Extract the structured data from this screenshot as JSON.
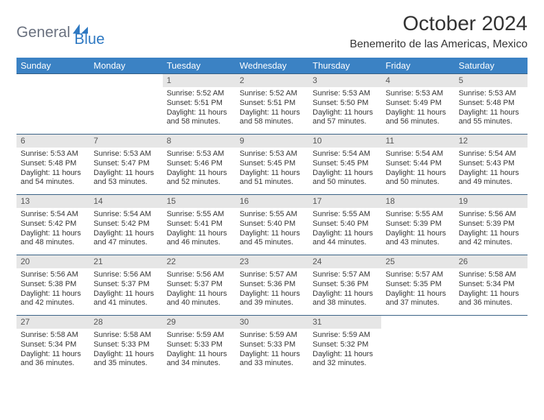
{
  "brand": {
    "part1": "General",
    "part2": "Blue"
  },
  "title": "October 2024",
  "location": "Benemerito de las Americas, Mexico",
  "colors": {
    "header_bg": "#3b82c4",
    "header_text": "#ffffff",
    "daynum_bg": "#e6e6e6",
    "row_border": "#2f5a80",
    "brand_gray": "#6b7280",
    "brand_blue": "#2f79c2"
  },
  "weekdays": [
    "Sunday",
    "Monday",
    "Tuesday",
    "Wednesday",
    "Thursday",
    "Friday",
    "Saturday"
  ],
  "weeks": [
    [
      {
        "empty": true
      },
      {
        "empty": true
      },
      {
        "num": "1",
        "sunrise": "Sunrise: 5:52 AM",
        "sunset": "Sunset: 5:51 PM",
        "daylight": "Daylight: 11 hours and 58 minutes."
      },
      {
        "num": "2",
        "sunrise": "Sunrise: 5:52 AM",
        "sunset": "Sunset: 5:51 PM",
        "daylight": "Daylight: 11 hours and 58 minutes."
      },
      {
        "num": "3",
        "sunrise": "Sunrise: 5:53 AM",
        "sunset": "Sunset: 5:50 PM",
        "daylight": "Daylight: 11 hours and 57 minutes."
      },
      {
        "num": "4",
        "sunrise": "Sunrise: 5:53 AM",
        "sunset": "Sunset: 5:49 PM",
        "daylight": "Daylight: 11 hours and 56 minutes."
      },
      {
        "num": "5",
        "sunrise": "Sunrise: 5:53 AM",
        "sunset": "Sunset: 5:48 PM",
        "daylight": "Daylight: 11 hours and 55 minutes."
      }
    ],
    [
      {
        "num": "6",
        "sunrise": "Sunrise: 5:53 AM",
        "sunset": "Sunset: 5:48 PM",
        "daylight": "Daylight: 11 hours and 54 minutes."
      },
      {
        "num": "7",
        "sunrise": "Sunrise: 5:53 AM",
        "sunset": "Sunset: 5:47 PM",
        "daylight": "Daylight: 11 hours and 53 minutes."
      },
      {
        "num": "8",
        "sunrise": "Sunrise: 5:53 AM",
        "sunset": "Sunset: 5:46 PM",
        "daylight": "Daylight: 11 hours and 52 minutes."
      },
      {
        "num": "9",
        "sunrise": "Sunrise: 5:53 AM",
        "sunset": "Sunset: 5:45 PM",
        "daylight": "Daylight: 11 hours and 51 minutes."
      },
      {
        "num": "10",
        "sunrise": "Sunrise: 5:54 AM",
        "sunset": "Sunset: 5:45 PM",
        "daylight": "Daylight: 11 hours and 50 minutes."
      },
      {
        "num": "11",
        "sunrise": "Sunrise: 5:54 AM",
        "sunset": "Sunset: 5:44 PM",
        "daylight": "Daylight: 11 hours and 50 minutes."
      },
      {
        "num": "12",
        "sunrise": "Sunrise: 5:54 AM",
        "sunset": "Sunset: 5:43 PM",
        "daylight": "Daylight: 11 hours and 49 minutes."
      }
    ],
    [
      {
        "num": "13",
        "sunrise": "Sunrise: 5:54 AM",
        "sunset": "Sunset: 5:42 PM",
        "daylight": "Daylight: 11 hours and 48 minutes."
      },
      {
        "num": "14",
        "sunrise": "Sunrise: 5:54 AM",
        "sunset": "Sunset: 5:42 PM",
        "daylight": "Daylight: 11 hours and 47 minutes."
      },
      {
        "num": "15",
        "sunrise": "Sunrise: 5:55 AM",
        "sunset": "Sunset: 5:41 PM",
        "daylight": "Daylight: 11 hours and 46 minutes."
      },
      {
        "num": "16",
        "sunrise": "Sunrise: 5:55 AM",
        "sunset": "Sunset: 5:40 PM",
        "daylight": "Daylight: 11 hours and 45 minutes."
      },
      {
        "num": "17",
        "sunrise": "Sunrise: 5:55 AM",
        "sunset": "Sunset: 5:40 PM",
        "daylight": "Daylight: 11 hours and 44 minutes."
      },
      {
        "num": "18",
        "sunrise": "Sunrise: 5:55 AM",
        "sunset": "Sunset: 5:39 PM",
        "daylight": "Daylight: 11 hours and 43 minutes."
      },
      {
        "num": "19",
        "sunrise": "Sunrise: 5:56 AM",
        "sunset": "Sunset: 5:39 PM",
        "daylight": "Daylight: 11 hours and 42 minutes."
      }
    ],
    [
      {
        "num": "20",
        "sunrise": "Sunrise: 5:56 AM",
        "sunset": "Sunset: 5:38 PM",
        "daylight": "Daylight: 11 hours and 42 minutes."
      },
      {
        "num": "21",
        "sunrise": "Sunrise: 5:56 AM",
        "sunset": "Sunset: 5:37 PM",
        "daylight": "Daylight: 11 hours and 41 minutes."
      },
      {
        "num": "22",
        "sunrise": "Sunrise: 5:56 AM",
        "sunset": "Sunset: 5:37 PM",
        "daylight": "Daylight: 11 hours and 40 minutes."
      },
      {
        "num": "23",
        "sunrise": "Sunrise: 5:57 AM",
        "sunset": "Sunset: 5:36 PM",
        "daylight": "Daylight: 11 hours and 39 minutes."
      },
      {
        "num": "24",
        "sunrise": "Sunrise: 5:57 AM",
        "sunset": "Sunset: 5:36 PM",
        "daylight": "Daylight: 11 hours and 38 minutes."
      },
      {
        "num": "25",
        "sunrise": "Sunrise: 5:57 AM",
        "sunset": "Sunset: 5:35 PM",
        "daylight": "Daylight: 11 hours and 37 minutes."
      },
      {
        "num": "26",
        "sunrise": "Sunrise: 5:58 AM",
        "sunset": "Sunset: 5:34 PM",
        "daylight": "Daylight: 11 hours and 36 minutes."
      }
    ],
    [
      {
        "num": "27",
        "sunrise": "Sunrise: 5:58 AM",
        "sunset": "Sunset: 5:34 PM",
        "daylight": "Daylight: 11 hours and 36 minutes."
      },
      {
        "num": "28",
        "sunrise": "Sunrise: 5:58 AM",
        "sunset": "Sunset: 5:33 PM",
        "daylight": "Daylight: 11 hours and 35 minutes."
      },
      {
        "num": "29",
        "sunrise": "Sunrise: 5:59 AM",
        "sunset": "Sunset: 5:33 PM",
        "daylight": "Daylight: 11 hours and 34 minutes."
      },
      {
        "num": "30",
        "sunrise": "Sunrise: 5:59 AM",
        "sunset": "Sunset: 5:33 PM",
        "daylight": "Daylight: 11 hours and 33 minutes."
      },
      {
        "num": "31",
        "sunrise": "Sunrise: 5:59 AM",
        "sunset": "Sunset: 5:32 PM",
        "daylight": "Daylight: 11 hours and 32 minutes."
      },
      {
        "empty": true
      },
      {
        "empty": true
      }
    ]
  ]
}
